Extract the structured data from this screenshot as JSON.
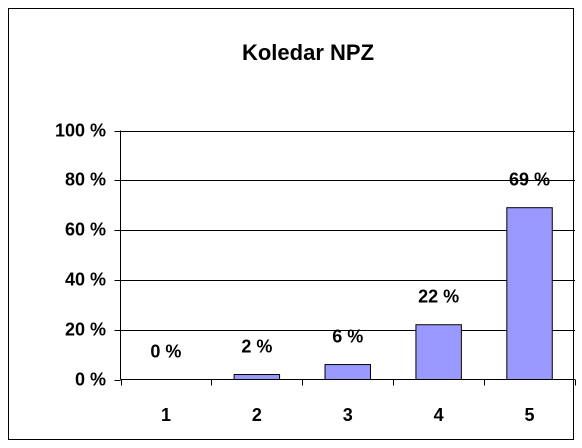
{
  "chart_data": {
    "type": "bar",
    "title": "Koledar NPZ",
    "categories": [
      "1",
      "2",
      "3",
      "4",
      "5"
    ],
    "values": [
      0,
      2,
      6,
      22,
      69
    ],
    "value_labels": [
      "0 %",
      "2 %",
      "6 %",
      "22 %",
      "69 %"
    ],
    "color": "#9999ff",
    "ylim": [
      0,
      100
    ],
    "yticks": [
      {
        "value": 0,
        "label": "0 %"
      },
      {
        "value": 20,
        "label": "20 %"
      },
      {
        "value": 40,
        "label": "40 %"
      },
      {
        "value": 60,
        "label": "60 %"
      },
      {
        "value": 80,
        "label": "80 %"
      },
      {
        "value": 100,
        "label": "100 %"
      }
    ],
    "grid": true
  }
}
